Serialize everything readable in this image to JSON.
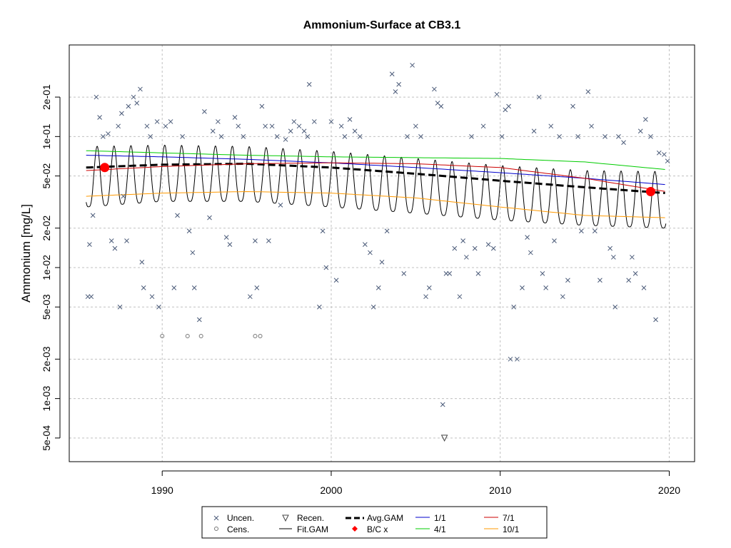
{
  "colors": {
    "uncensored": "#4a5a78",
    "fit_gam": "#000000",
    "avg_gam": "#000000",
    "bc": "#ff0000",
    "jan1": "#0000cc",
    "apr1": "#00cc00",
    "jul1": "#cc0000",
    "oct1": "#ff9900",
    "grid": "#c0c0c0"
  },
  "chart_data": {
    "type": "scatter",
    "title": "Ammonium-Surface at CB3.1",
    "xlabel": "",
    "ylabel": "Ammonium [mg/L]",
    "x_scale": "linear",
    "y_scale": "log",
    "xlim": [
      1984.5,
      2021.5
    ],
    "ylim": [
      0.00033,
      0.5
    ],
    "grid": true,
    "legend_position": "bottom",
    "x_ticks": [
      1990,
      2000,
      2010,
      2020
    ],
    "y_ticks": [
      {
        "value": 0.0005,
        "label": "5e-04"
      },
      {
        "value": 0.001,
        "label": "1e-03"
      },
      {
        "value": 0.002,
        "label": "2e-03"
      },
      {
        "value": 0.005,
        "label": "5e-03"
      },
      {
        "value": 0.01,
        "label": "1e-02"
      },
      {
        "value": 0.02,
        "label": "2e-02"
      },
      {
        "value": 0.05,
        "label": "5e-02"
      },
      {
        "value": 0.1,
        "label": "1e-01"
      },
      {
        "value": 0.2,
        "label": "2e-01"
      }
    ],
    "legend": {
      "uncensored": "Uncen.",
      "censored": "Cens.",
      "recensored": "Recen.",
      "fit_gam": "Fit.GAM",
      "avg_gam": "Avg.GAM",
      "bc": "B/C x",
      "jan1": "1/1",
      "apr1": "4/1",
      "jul1": "7/1",
      "oct1": "10/1"
    },
    "series": [
      {
        "name": "Avg.GAM",
        "style": "dashed",
        "x": [
          1985.5,
          1990,
          1995,
          2000,
          2005,
          2010,
          2015,
          2019.8
        ],
        "y": [
          0.058,
          0.061,
          0.062,
          0.058,
          0.052,
          0.046,
          0.041,
          0.037
        ]
      },
      {
        "name": "1/1",
        "x": [
          1985.5,
          1990,
          1995,
          2000,
          2005,
          2010,
          2015,
          2019.8
        ],
        "y": [
          0.072,
          0.07,
          0.067,
          0.063,
          0.058,
          0.053,
          0.048,
          0.043
        ]
      },
      {
        "name": "4/1",
        "x": [
          1985.5,
          1990,
          1995,
          2000,
          2005,
          2010,
          2015,
          2019.8
        ],
        "y": [
          0.078,
          0.075,
          0.072,
          0.07,
          0.069,
          0.068,
          0.064,
          0.056
        ]
      },
      {
        "name": "7/1",
        "x": [
          1985.5,
          1990,
          1995,
          2000,
          2005,
          2010,
          2015,
          2019.8
        ],
        "y": [
          0.055,
          0.059,
          0.062,
          0.063,
          0.062,
          0.058,
          0.048,
          0.038
        ]
      },
      {
        "name": "10/1",
        "x": [
          1985.5,
          1990,
          1995,
          2000,
          2005,
          2010,
          2015,
          2019.8
        ],
        "y": [
          0.035,
          0.037,
          0.038,
          0.037,
          0.034,
          0.029,
          0.025,
          0.024
        ]
      }
    ],
    "fit_gam": {
      "seasonal_low": [
        0.029,
        0.032,
        0.032,
        0.029,
        0.026,
        0.023,
        0.021,
        0.02
      ],
      "seasonal_high": [
        0.084,
        0.086,
        0.084,
        0.077,
        0.068,
        0.06,
        0.055,
        0.054
      ],
      "x": [
        1985.5,
        1990,
        1995,
        2000,
        2005,
        2010,
        2015,
        2019.8
      ]
    },
    "bc_points": [
      {
        "x": 1986.6,
        "y": 0.058
      },
      {
        "x": 2018.9,
        "y": 0.038
      }
    ],
    "censored_points": [
      {
        "x": 1990.0,
        "y": 0.003
      },
      {
        "x": 1991.5,
        "y": 0.003
      },
      {
        "x": 1992.3,
        "y": 0.003
      },
      {
        "x": 1995.5,
        "y": 0.003
      },
      {
        "x": 1995.8,
        "y": 0.003
      }
    ],
    "recensored_points": [
      {
        "x": 2006.7,
        "y": 0.0005
      }
    ],
    "uncensored_points": [
      {
        "x": 1985.6,
        "y": 0.006
      },
      {
        "x": 1985.8,
        "y": 0.006
      },
      {
        "x": 1985.7,
        "y": 0.015
      },
      {
        "x": 1985.9,
        "y": 0.025
      },
      {
        "x": 1986.1,
        "y": 0.2
      },
      {
        "x": 1986.3,
        "y": 0.14
      },
      {
        "x": 1986.5,
        "y": 0.1
      },
      {
        "x": 1986.8,
        "y": 0.105
      },
      {
        "x": 1987.0,
        "y": 0.016
      },
      {
        "x": 1987.2,
        "y": 0.014
      },
      {
        "x": 1987.4,
        "y": 0.12
      },
      {
        "x": 1987.6,
        "y": 0.15
      },
      {
        "x": 1987.5,
        "y": 0.005
      },
      {
        "x": 1987.9,
        "y": 0.016
      },
      {
        "x": 1987.7,
        "y": 0.035
      },
      {
        "x": 1988.0,
        "y": 0.17
      },
      {
        "x": 1988.3,
        "y": 0.2
      },
      {
        "x": 1988.5,
        "y": 0.18
      },
      {
        "x": 1988.7,
        "y": 0.23
      },
      {
        "x": 1988.8,
        "y": 0.011
      },
      {
        "x": 1988.9,
        "y": 0.007
      },
      {
        "x": 1989.1,
        "y": 0.12
      },
      {
        "x": 1989.3,
        "y": 0.1
      },
      {
        "x": 1989.4,
        "y": 0.006
      },
      {
        "x": 1989.7,
        "y": 0.13
      },
      {
        "x": 1989.8,
        "y": 0.005
      },
      {
        "x": 1990.2,
        "y": 0.12
      },
      {
        "x": 1990.5,
        "y": 0.13
      },
      {
        "x": 1990.7,
        "y": 0.007
      },
      {
        "x": 1990.9,
        "y": 0.025
      },
      {
        "x": 1991.2,
        "y": 0.1
      },
      {
        "x": 1991.6,
        "y": 0.019
      },
      {
        "x": 1991.8,
        "y": 0.013
      },
      {
        "x": 1991.9,
        "y": 0.007
      },
      {
        "x": 1992.2,
        "y": 0.004
      },
      {
        "x": 1992.5,
        "y": 0.155
      },
      {
        "x": 1992.8,
        "y": 0.024
      },
      {
        "x": 1993.0,
        "y": 0.11
      },
      {
        "x": 1993.3,
        "y": 0.13
      },
      {
        "x": 1993.5,
        "y": 0.1
      },
      {
        "x": 1993.8,
        "y": 0.017
      },
      {
        "x": 1994.0,
        "y": 0.015
      },
      {
        "x": 1994.3,
        "y": 0.14
      },
      {
        "x": 1994.5,
        "y": 0.12
      },
      {
        "x": 1994.8,
        "y": 0.1
      },
      {
        "x": 1995.2,
        "y": 0.006
      },
      {
        "x": 1995.5,
        "y": 0.016
      },
      {
        "x": 1995.6,
        "y": 0.007
      },
      {
        "x": 1995.9,
        "y": 0.17
      },
      {
        "x": 1996.1,
        "y": 0.12
      },
      {
        "x": 1996.3,
        "y": 0.016
      },
      {
        "x": 1996.5,
        "y": 0.12
      },
      {
        "x": 1996.8,
        "y": 0.1
      },
      {
        "x": 1997.0,
        "y": 0.03
      },
      {
        "x": 1997.3,
        "y": 0.095
      },
      {
        "x": 1997.6,
        "y": 0.11
      },
      {
        "x": 1997.8,
        "y": 0.13
      },
      {
        "x": 1998.1,
        "y": 0.12
      },
      {
        "x": 1998.4,
        "y": 0.11
      },
      {
        "x": 1998.6,
        "y": 0.1
      },
      {
        "x": 1998.7,
        "y": 0.25
      },
      {
        "x": 1999.0,
        "y": 0.13
      },
      {
        "x": 1999.3,
        "y": 0.005
      },
      {
        "x": 1999.5,
        "y": 0.019
      },
      {
        "x": 1999.7,
        "y": 0.01
      },
      {
        "x": 2000.0,
        "y": 0.13
      },
      {
        "x": 2000.3,
        "y": 0.008
      },
      {
        "x": 2000.6,
        "y": 0.12
      },
      {
        "x": 2000.8,
        "y": 0.1
      },
      {
        "x": 2001.1,
        "y": 0.135
      },
      {
        "x": 2001.4,
        "y": 0.11
      },
      {
        "x": 2001.7,
        "y": 0.1
      },
      {
        "x": 2002.0,
        "y": 0.015
      },
      {
        "x": 2002.3,
        "y": 0.013
      },
      {
        "x": 2002.5,
        "y": 0.005
      },
      {
        "x": 2002.8,
        "y": 0.007
      },
      {
        "x": 2003.0,
        "y": 0.011
      },
      {
        "x": 2003.3,
        "y": 0.019
      },
      {
        "x": 2003.6,
        "y": 0.3
      },
      {
        "x": 2003.8,
        "y": 0.22
      },
      {
        "x": 2004.0,
        "y": 0.25
      },
      {
        "x": 2004.3,
        "y": 0.009
      },
      {
        "x": 2004.5,
        "y": 0.1
      },
      {
        "x": 2004.8,
        "y": 0.35
      },
      {
        "x": 2005.0,
        "y": 0.12
      },
      {
        "x": 2005.3,
        "y": 0.1
      },
      {
        "x": 2005.6,
        "y": 0.006
      },
      {
        "x": 2005.8,
        "y": 0.007
      },
      {
        "x": 2006.1,
        "y": 0.23
      },
      {
        "x": 2006.3,
        "y": 0.18
      },
      {
        "x": 2006.5,
        "y": 0.17
      },
      {
        "x": 2006.6,
        "y": 0.0009
      },
      {
        "x": 2006.8,
        "y": 0.009
      },
      {
        "x": 2007.0,
        "y": 0.009
      },
      {
        "x": 2007.3,
        "y": 0.014
      },
      {
        "x": 2007.6,
        "y": 0.006
      },
      {
        "x": 2007.8,
        "y": 0.016
      },
      {
        "x": 2008.0,
        "y": 0.012
      },
      {
        "x": 2008.3,
        "y": 0.1
      },
      {
        "x": 2008.5,
        "y": 0.014
      },
      {
        "x": 2008.7,
        "y": 0.009
      },
      {
        "x": 2009.0,
        "y": 0.12
      },
      {
        "x": 2009.3,
        "y": 0.015
      },
      {
        "x": 2009.6,
        "y": 0.014
      },
      {
        "x": 2009.8,
        "y": 0.21
      },
      {
        "x": 2010.1,
        "y": 0.1
      },
      {
        "x": 2010.3,
        "y": 0.16
      },
      {
        "x": 2010.5,
        "y": 0.17
      },
      {
        "x": 2010.6,
        "y": 0.002
      },
      {
        "x": 2010.8,
        "y": 0.005
      },
      {
        "x": 2011.0,
        "y": 0.002
      },
      {
        "x": 2011.3,
        "y": 0.007
      },
      {
        "x": 2011.6,
        "y": 0.017
      },
      {
        "x": 2011.8,
        "y": 0.013
      },
      {
        "x": 2012.0,
        "y": 0.11
      },
      {
        "x": 2012.3,
        "y": 0.2
      },
      {
        "x": 2012.5,
        "y": 0.009
      },
      {
        "x": 2012.7,
        "y": 0.007
      },
      {
        "x": 2013.0,
        "y": 0.12
      },
      {
        "x": 2013.2,
        "y": 0.016
      },
      {
        "x": 2013.5,
        "y": 0.1
      },
      {
        "x": 2013.7,
        "y": 0.006
      },
      {
        "x": 2014.0,
        "y": 0.008
      },
      {
        "x": 2014.3,
        "y": 0.17
      },
      {
        "x": 2014.6,
        "y": 0.1
      },
      {
        "x": 2014.8,
        "y": 0.019
      },
      {
        "x": 2015.2,
        "y": 0.22
      },
      {
        "x": 2015.4,
        "y": 0.12
      },
      {
        "x": 2015.6,
        "y": 0.019
      },
      {
        "x": 2015.9,
        "y": 0.008
      },
      {
        "x": 2016.2,
        "y": 0.1
      },
      {
        "x": 2016.5,
        "y": 0.014
      },
      {
        "x": 2016.7,
        "y": 0.012
      },
      {
        "x": 2016.8,
        "y": 0.005
      },
      {
        "x": 2017.0,
        "y": 0.1
      },
      {
        "x": 2017.3,
        "y": 0.09
      },
      {
        "x": 2017.6,
        "y": 0.008
      },
      {
        "x": 2017.8,
        "y": 0.012
      },
      {
        "x": 2018.0,
        "y": 0.009
      },
      {
        "x": 2018.3,
        "y": 0.11
      },
      {
        "x": 2018.5,
        "y": 0.007
      },
      {
        "x": 2018.6,
        "y": 0.135
      },
      {
        "x": 2018.9,
        "y": 0.1
      },
      {
        "x": 2019.2,
        "y": 0.004
      },
      {
        "x": 2019.4,
        "y": 0.075
      },
      {
        "x": 2019.7,
        "y": 0.073
      },
      {
        "x": 2019.9,
        "y": 0.065
      }
    ]
  }
}
